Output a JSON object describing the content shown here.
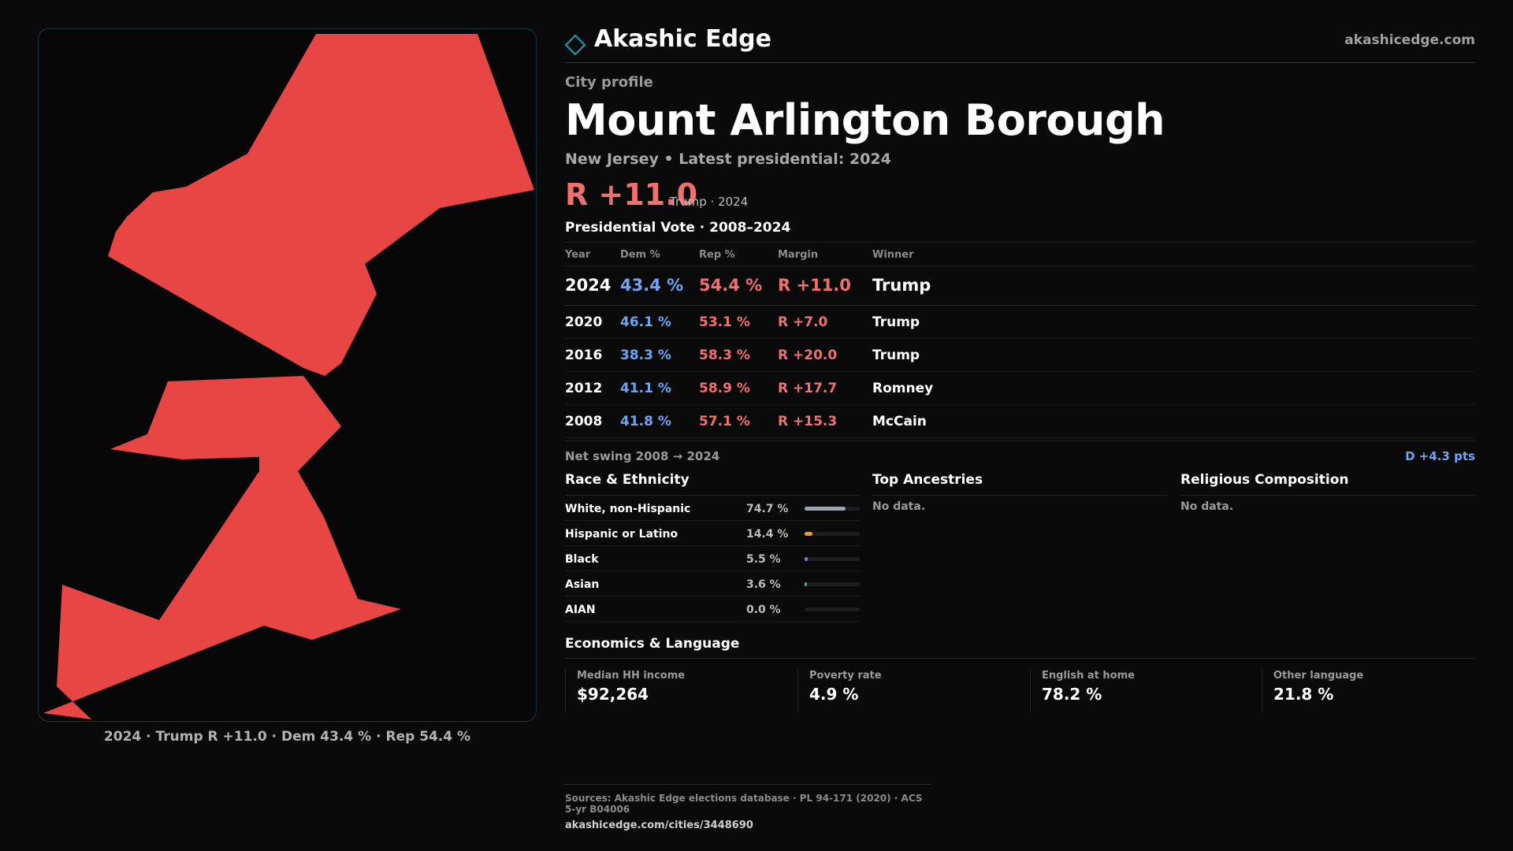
{
  "map": {
    "fill_color": "#e84545",
    "caption": "2024 · Trump R +11.0 · Dem 43.4 % · Rep 54.4 %"
  },
  "header": {
    "brand": "Akashic Edge",
    "site": "akashicedge.com",
    "logo_icon": "diamond-icon",
    "accent": "#1aa3b8"
  },
  "profile": {
    "eyebrow": "City profile",
    "title": "Mount Arlington Borough",
    "subtitle": "New Jersey • Latest presidential: 2024",
    "margin": "R +11.0",
    "margin_note": "Trump · 2024"
  },
  "vote": {
    "title": "Presidential Vote · 2008–2024",
    "columns": [
      "Year",
      "Dem %",
      "Rep %",
      "Margin",
      "Winner"
    ],
    "rows": [
      {
        "year": "2024",
        "dem": "43.4 %",
        "rep": "54.4 %",
        "margin": "R +11.0",
        "winner": "Trump"
      },
      {
        "year": "2020",
        "dem": "46.1 %",
        "rep": "53.1 %",
        "margin": "R +7.0",
        "winner": "Trump"
      },
      {
        "year": "2016",
        "dem": "38.3 %",
        "rep": "58.3 %",
        "margin": "R +20.0",
        "winner": "Trump"
      },
      {
        "year": "2012",
        "dem": "41.1 %",
        "rep": "58.9 %",
        "margin": "R +17.7",
        "winner": "Romney"
      },
      {
        "year": "2008",
        "dem": "41.8 %",
        "rep": "57.1 %",
        "margin": "R +15.3",
        "winner": "McCain"
      }
    ],
    "swing_label": "Net swing 2008 → 2024",
    "swing_value": "D +4.3 pts"
  },
  "race": {
    "title": "Race & Ethnicity",
    "rows": [
      {
        "label": "White, non-Hispanic",
        "pct": "74.7 %",
        "share": 0.747,
        "color": "#9aa4b8"
      },
      {
        "label": "Hispanic or Latino",
        "pct": "14.4 %",
        "share": 0.144,
        "color": "#e8a020"
      },
      {
        "label": "Black",
        "pct": "5.5 %",
        "share": 0.055,
        "color": "#8a70e0"
      },
      {
        "label": "Asian",
        "pct": "3.6 %",
        "share": 0.036,
        "color": "#30c090"
      },
      {
        "label": "AIAN",
        "pct": "0.0 %",
        "share": 0.0,
        "color": "#c06060"
      }
    ]
  },
  "ancestries": {
    "title": "Top Ancestries",
    "empty": "No data."
  },
  "religion": {
    "title": "Religious Composition",
    "empty": "No data."
  },
  "economics": {
    "title": "Economics & Language",
    "cells": [
      {
        "label": "Median HH income",
        "value": "$92,264"
      },
      {
        "label": "Poverty rate",
        "value": "4.9 %"
      },
      {
        "label": "English at home",
        "value": "78.2 %"
      },
      {
        "label": "Other language",
        "value": "21.8 %"
      }
    ]
  },
  "footer": {
    "sources": "Sources: Akashic Edge elections database · PL 94-171 (2020) · ACS 5-yr B04006",
    "url": "akashicedge.com/cities/3448690"
  }
}
